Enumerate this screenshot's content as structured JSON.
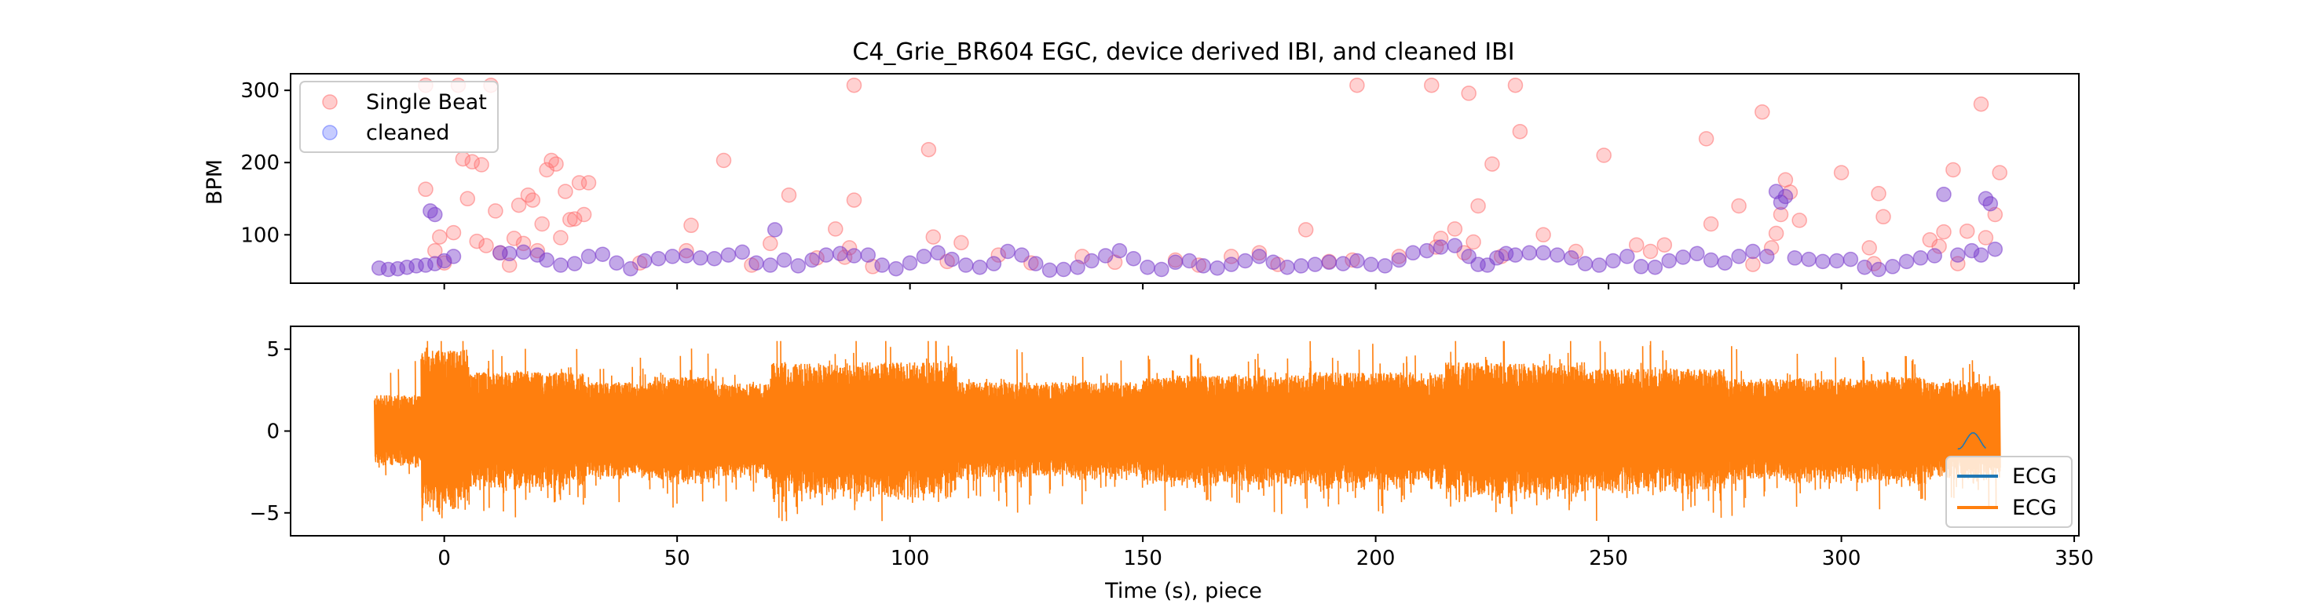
{
  "title": "C4_Grie_BR604 EGC, device derived IBI, and cleaned IBI",
  "chart_data": [
    {
      "type": "scatter",
      "ylabel": "BPM",
      "xlim": [
        -33,
        351
      ],
      "ylim": [
        33,
        323
      ],
      "yticks": [
        100,
        200,
        300
      ],
      "legend_position": "upper left",
      "series": [
        {
          "name": "Single Beat",
          "color": "#ff6f6f",
          "x": [
            -4,
            -4,
            -2,
            -1,
            0,
            2,
            3,
            4,
            5,
            6,
            7,
            8,
            9,
            10,
            11,
            12,
            14,
            15,
            16,
            17,
            18,
            19,
            20,
            21,
            22,
            23,
            24,
            25,
            26,
            27,
            28,
            29,
            30,
            31,
            42,
            52,
            53,
            60,
            66,
            70,
            74,
            80,
            84,
            86,
            87,
            88,
            88,
            92,
            104,
            105,
            108,
            111,
            119,
            126,
            137,
            144,
            157,
            162,
            169,
            175,
            179,
            185,
            190,
            195,
            196,
            205,
            212,
            213,
            214,
            217,
            219,
            220,
            221,
            222,
            225,
            227,
            230,
            231,
            236,
            243,
            249,
            256,
            259,
            262,
            271,
            272,
            278,
            281,
            283,
            285,
            286,
            287,
            288,
            289,
            291,
            300,
            306,
            307,
            308,
            309,
            319,
            321,
            322,
            324,
            325,
            327,
            330,
            331,
            333,
            334
          ],
          "y": [
            307,
            163,
            78,
            97,
            61,
            103,
            307,
            205,
            150,
            201,
            91,
            197,
            85,
            307,
            133,
            75,
            58,
            95,
            141,
            88,
            155,
            148,
            78,
            115,
            190,
            203,
            198,
            96,
            160,
            121,
            122,
            172,
            128,
            172,
            61,
            78,
            113,
            203,
            58,
            88,
            155,
            68,
            108,
            69,
            82,
            148,
            307,
            56,
            218,
            97,
            63,
            89,
            72,
            61,
            70,
            62,
            65,
            58,
            70,
            75,
            59,
            107,
            63,
            65,
            307,
            70,
            307,
            83,
            95,
            108,
            75,
            296,
            90,
            140,
            198,
            70,
            307,
            243,
            100,
            77,
            210,
            86,
            77,
            86,
            233,
            115,
            140,
            59,
            270,
            82,
            102,
            128,
            176,
            159,
            120,
            186,
            82,
            60,
            157,
            125,
            93,
            84,
            104,
            190,
            60,
            105,
            281,
            96,
            128,
            186
          ]
        },
        {
          "name": "cleaned",
          "color": "#7a3dcc",
          "x": [
            -14,
            -12,
            -10,
            -8,
            -6,
            -4,
            -2,
            0,
            2,
            -3,
            -2,
            12,
            14,
            17,
            20,
            22,
            25,
            28,
            31,
            34,
            37,
            40,
            43,
            46,
            49,
            52,
            55,
            58,
            61,
            64,
            67,
            70,
            71,
            73,
            76,
            79,
            82,
            85,
            88,
            91,
            94,
            97,
            100,
            103,
            106,
            109,
            112,
            115,
            118,
            121,
            124,
            127,
            130,
            133,
            136,
            139,
            142,
            145,
            148,
            151,
            154,
            157,
            160,
            163,
            166,
            169,
            172,
            175,
            178,
            181,
            184,
            187,
            190,
            193,
            196,
            199,
            202,
            205,
            208,
            211,
            214,
            217,
            220,
            222,
            224,
            226,
            228,
            230,
            233,
            236,
            239,
            242,
            245,
            248,
            251,
            254,
            257,
            260,
            263,
            266,
            269,
            272,
            275,
            278,
            281,
            284,
            286,
            287,
            288,
            290,
            293,
            296,
            299,
            302,
            305,
            308,
            311,
            314,
            317,
            320,
            322,
            325,
            328,
            330,
            331,
            332,
            333
          ],
          "y": [
            54,
            52,
            53,
            55,
            57,
            58,
            60,
            64,
            70,
            133,
            128,
            75,
            74,
            76,
            72,
            65,
            58,
            60,
            70,
            73,
            61,
            53,
            64,
            67,
            70,
            71,
            68,
            67,
            72,
            76,
            61,
            58,
            107,
            65,
            57,
            65,
            72,
            74,
            71,
            72,
            58,
            53,
            61,
            70,
            75,
            66,
            58,
            55,
            60,
            77,
            72,
            60,
            51,
            52,
            55,
            64,
            71,
            78,
            67,
            55,
            52,
            62,
            64,
            57,
            54,
            59,
            64,
            70,
            62,
            55,
            57,
            59,
            62,
            60,
            64,
            59,
            57,
            65,
            75,
            78,
            83,
            85,
            70,
            59,
            58,
            68,
            74,
            72,
            75,
            75,
            72,
            68,
            60,
            58,
            64,
            70,
            56,
            55,
            64,
            69,
            74,
            65,
            61,
            70,
            77,
            70,
            160,
            145,
            153,
            68,
            66,
            63,
            64,
            66,
            55,
            52,
            56,
            63,
            68,
            71,
            156,
            72,
            78,
            72,
            150,
            143,
            80
          ]
        }
      ]
    },
    {
      "type": "line",
      "xlabel": "Time (s), piece",
      "xlim": [
        -33,
        351
      ],
      "ylim": [
        -6.4,
        6.4
      ],
      "xticks": [
        0,
        50,
        100,
        150,
        200,
        250,
        300,
        350
      ],
      "yticks": [
        -5,
        0,
        5
      ],
      "legend_position": "lower right",
      "x_range": [
        -15,
        334
      ],
      "amplitude_peak": 5.5,
      "series": [
        {
          "name": "ECG",
          "color": "#1f77b4"
        },
        {
          "name": "ECG",
          "color": "#ff7f0e"
        }
      ]
    }
  ]
}
